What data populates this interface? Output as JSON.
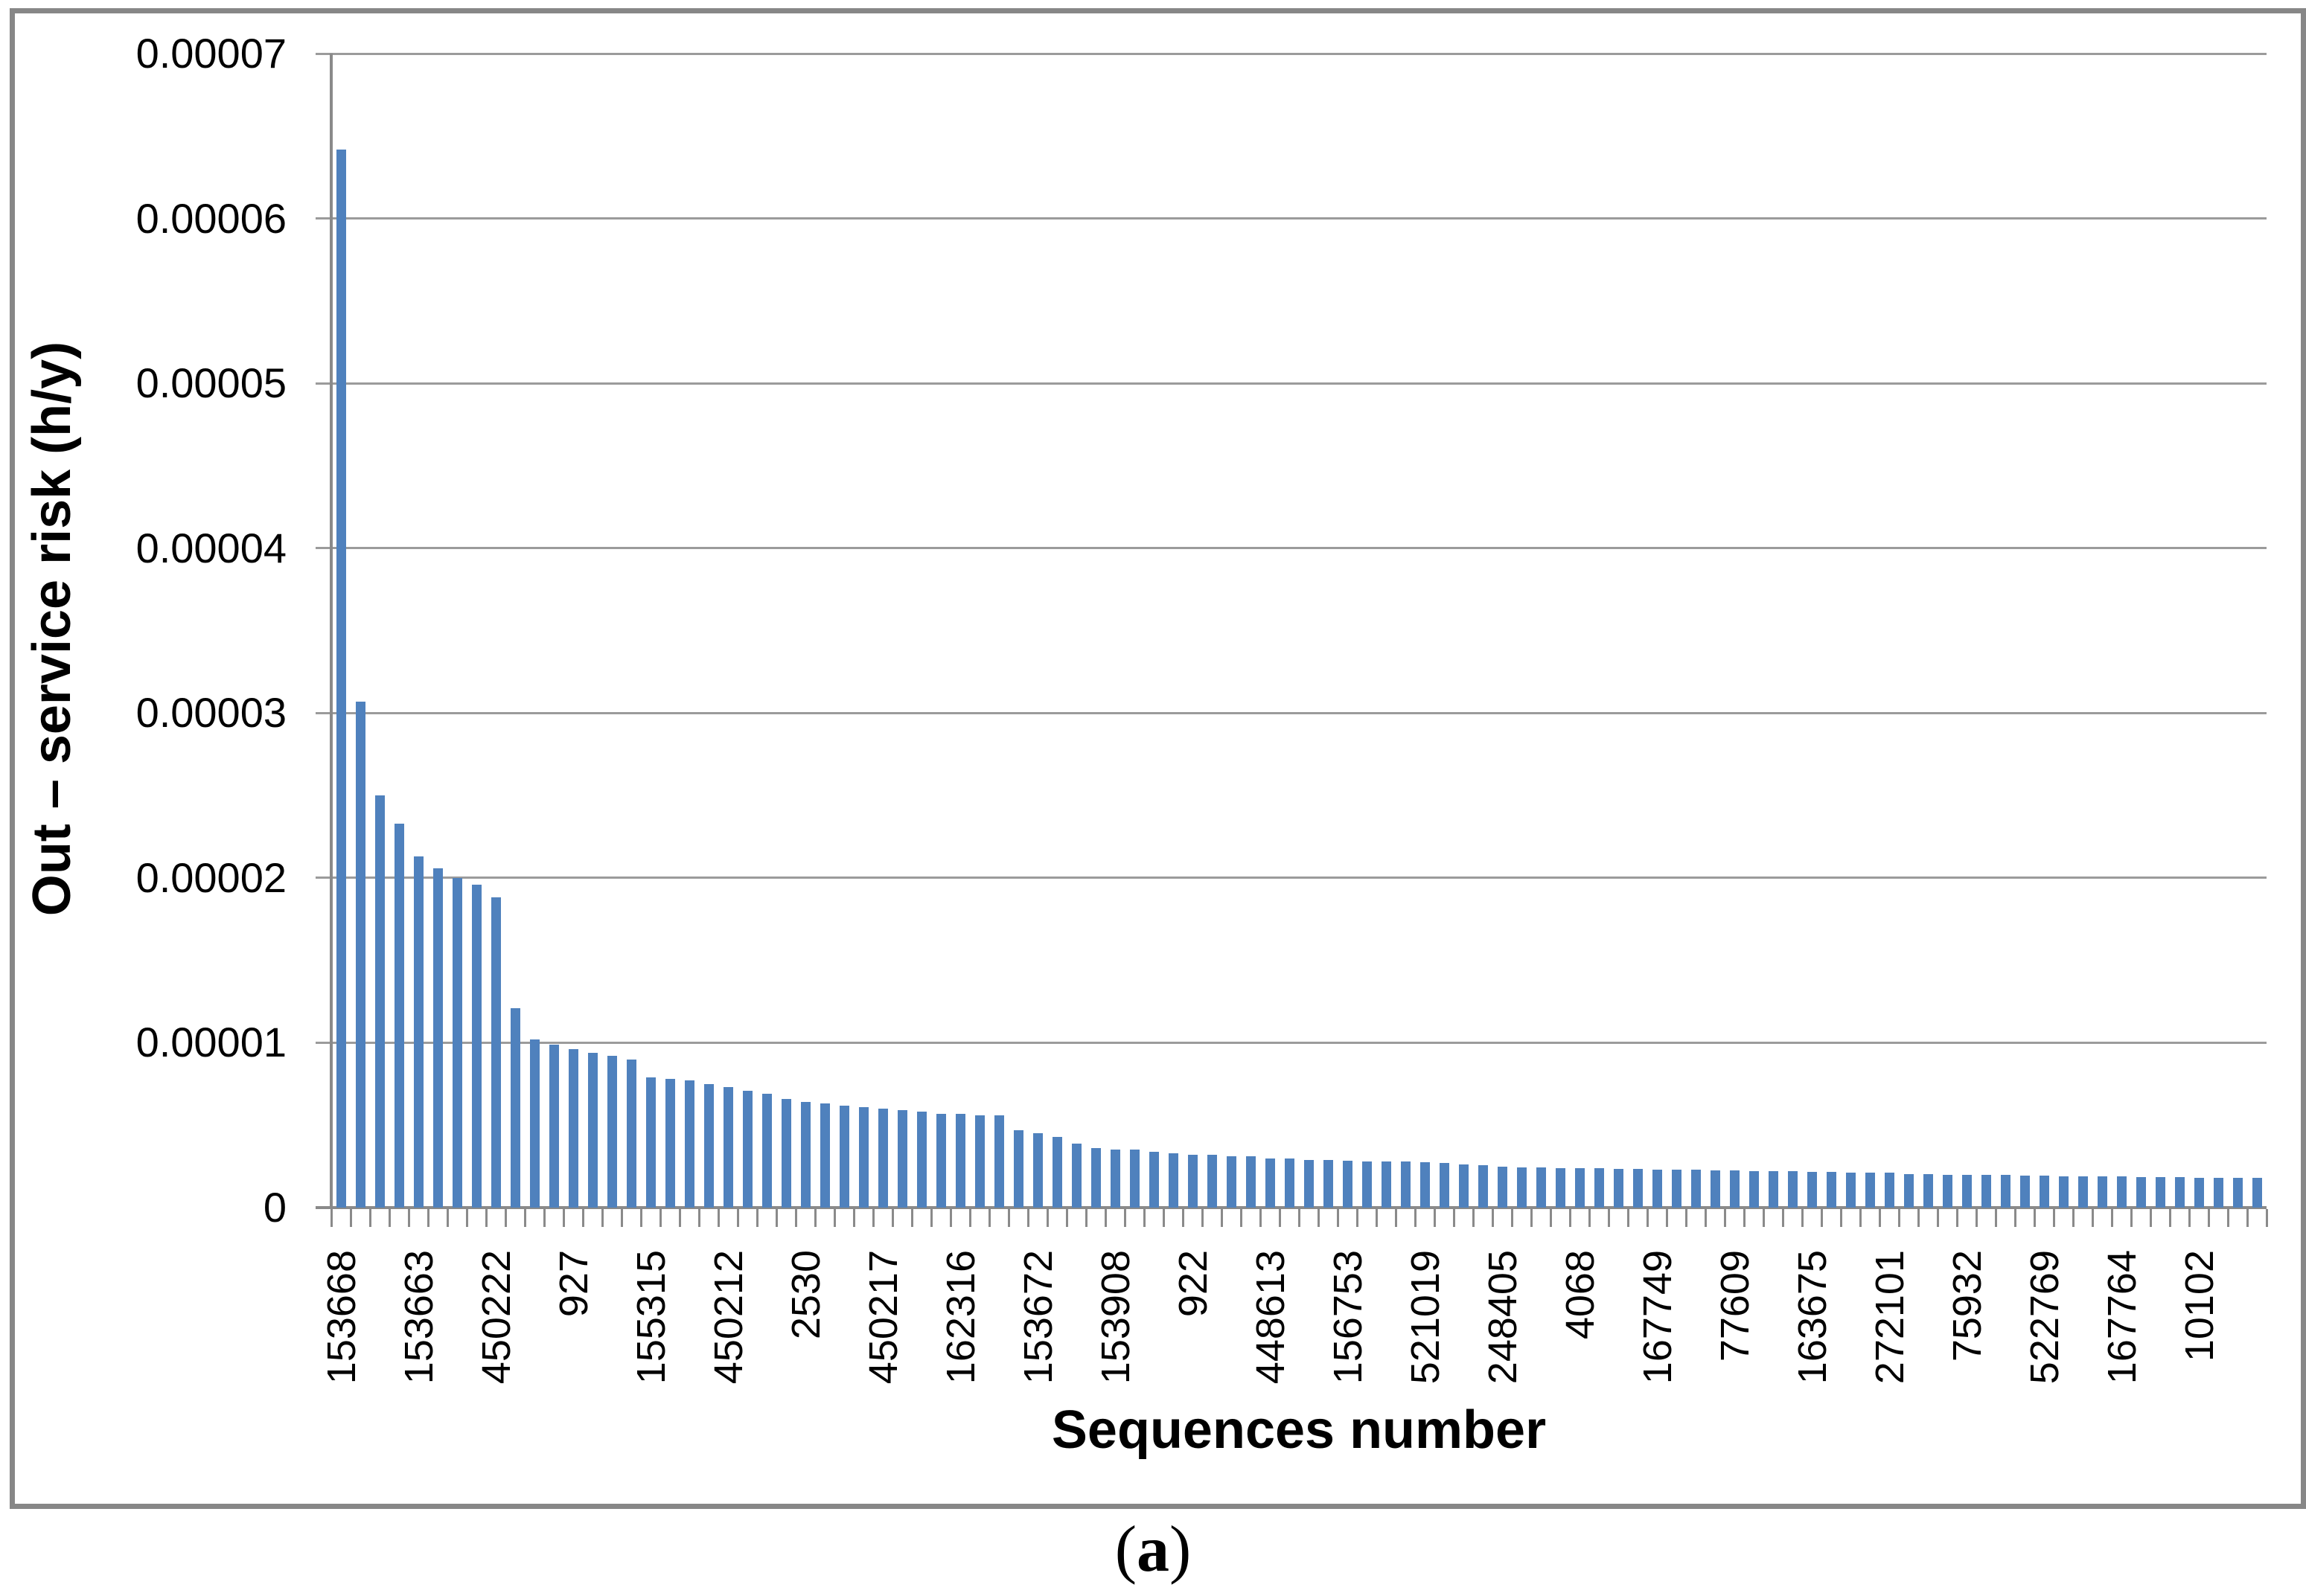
{
  "figure": {
    "caption": {
      "open": "(",
      "letter": "a",
      "close": ")"
    }
  },
  "chart_data": {
    "type": "bar",
    "title": "",
    "xlabel": "Sequences number",
    "ylabel": "Out – service risk (h/y)",
    "ylim": [
      0,
      7e-05
    ],
    "grid": "horizontal",
    "legend": "none",
    "bar_color": "#4F81BD",
    "gridline_color": "#9b9b9b",
    "axis_color": "#8a8a8a",
    "ytick_labels": [
      "0.00007",
      "0.00006",
      "0.00005",
      "0.00004",
      "0.00003",
      "0.00002",
      "0.00001",
      "0"
    ],
    "ytick_values": [
      7e-05,
      6e-05,
      5e-05,
      4e-05,
      3e-05,
      2e-05,
      1e-05,
      0
    ],
    "xtick_labels": [
      "153668",
      "153663",
      "450222",
      "927",
      "155315",
      "450212",
      "2530",
      "450217",
      "162316",
      "153672",
      "153908",
      "922",
      "448613",
      "156753",
      "521019",
      "248405",
      "4068",
      "167749",
      "77609",
      "163675",
      "272101",
      "75932",
      "522769",
      "167764",
      "10102"
    ],
    "xtick_label_interval": 4,
    "xtick_label_start_index": 0,
    "values": [
      6.42e-05,
      3.07e-05,
      2.5e-05,
      2.33e-05,
      2.13e-05,
      2.06e-05,
      2e-05,
      1.96e-05,
      1.88e-05,
      1.21e-05,
      1.02e-05,
      9.9e-06,
      9.6e-06,
      9.4e-06,
      9.2e-06,
      9e-06,
      7.9e-06,
      7.8e-06,
      7.7e-06,
      7.5e-06,
      7.3e-06,
      7.1e-06,
      6.9e-06,
      6.6e-06,
      6.4e-06,
      6.3e-06,
      6.2e-06,
      6.1e-06,
      6e-06,
      5.9e-06,
      5.8e-06,
      5.7e-06,
      5.7e-06,
      5.6e-06,
      5.6e-06,
      4.7e-06,
      4.5e-06,
      4.3e-06,
      3.9e-06,
      3.6e-06,
      3.5e-06,
      3.5e-06,
      3.4e-06,
      3.3e-06,
      3.2e-06,
      3.2e-06,
      3.1e-06,
      3.1e-06,
      3e-06,
      3e-06,
      2.9e-06,
      2.9e-06,
      2.85e-06,
      2.8e-06,
      2.8e-06,
      2.8e-06,
      2.75e-06,
      2.7e-06,
      2.6e-06,
      2.55e-06,
      2.5e-06,
      2.45e-06,
      2.45e-06,
      2.4e-06,
      2.4e-06,
      2.4e-06,
      2.35e-06,
      2.35e-06,
      2.3e-06,
      2.3e-06,
      2.3e-06,
      2.25e-06,
      2.25e-06,
      2.2e-06,
      2.2e-06,
      2.2e-06,
      2.15e-06,
      2.15e-06,
      2.1e-06,
      2.1e-06,
      2.1e-06,
      2.05e-06,
      2.05e-06,
      2e-06,
      2e-06,
      2e-06,
      2e-06,
      1.95e-06,
      1.95e-06,
      1.9e-06,
      1.9e-06,
      1.9e-06,
      1.9e-06,
      1.85e-06,
      1.85e-06,
      1.85e-06,
      1.8e-06,
      1.8e-06,
      1.8e-06,
      1.8e-06
    ]
  }
}
